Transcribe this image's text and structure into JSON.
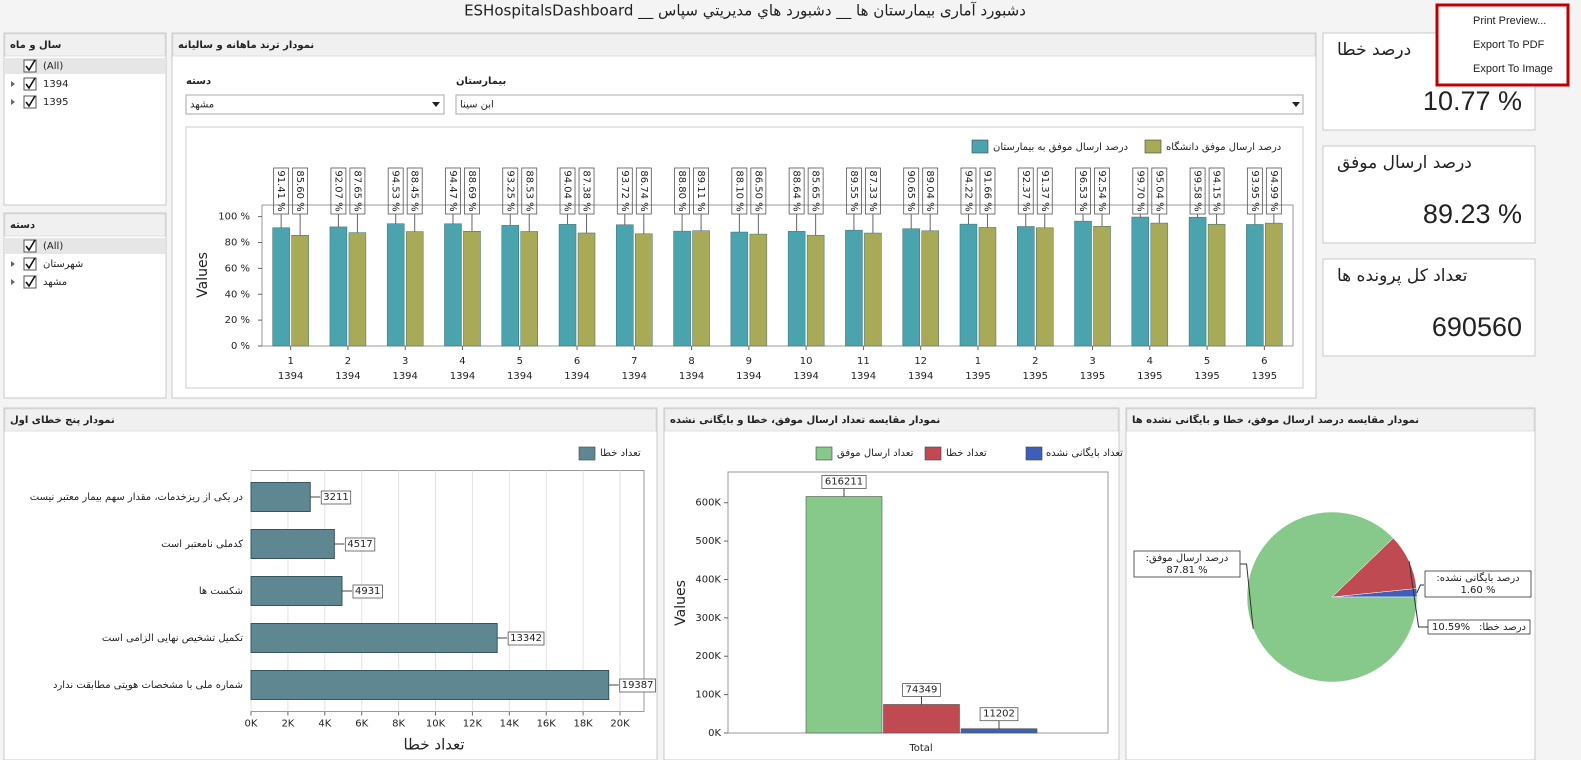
{
  "header": {
    "title": "دشبورد آماری بیمارستان ها __ دشبورد هاي مديريتي سپاس __ ESHospitalsDashboard"
  },
  "menu": {
    "items": [
      "Print Preview...",
      "Export To PDF",
      "Export To Image"
    ]
  },
  "filters": [
    {
      "title": "سال و ماه",
      "items": [
        "(All)",
        "1394",
        "1395"
      ]
    },
    {
      "title": "دسته",
      "items": [
        "(All)",
        "شهرستان",
        "مشهد"
      ]
    }
  ],
  "trend_panel": {
    "dropdowns": [
      {
        "label": "دسته",
        "value": "مشهد"
      },
      {
        "label": "بیمارستان",
        "value": "ابن سینا"
      }
    ]
  },
  "kpis": [
    {
      "title": "درصد خطا",
      "value": "10.77 %"
    },
    {
      "title": "درصد ارسال موفق",
      "value": "89.23 %"
    },
    {
      "title": "تعداد کل پرونده ها",
      "value": "690560"
    }
  ],
  "chart_data": [
    {
      "type": "bar",
      "title": "نمودار ترند ماهانه و سالیانه",
      "ylabel": "Values",
      "grid": false,
      "categories": [
        [
          "1",
          "1394"
        ],
        [
          "2",
          "1394"
        ],
        [
          "3",
          "1394"
        ],
        [
          "4",
          "1394"
        ],
        [
          "5",
          "1394"
        ],
        [
          "6",
          "1394"
        ],
        [
          "7",
          "1394"
        ],
        [
          "8",
          "1394"
        ],
        [
          "9",
          "1394"
        ],
        [
          "10",
          "1394"
        ],
        [
          "11",
          "1394"
        ],
        [
          "12",
          "1394"
        ],
        [
          "1",
          "1395"
        ],
        [
          "2",
          "1395"
        ],
        [
          "3",
          "1395"
        ],
        [
          "4",
          "1395"
        ],
        [
          "5",
          "1395"
        ],
        [
          "6",
          "1395"
        ]
      ],
      "ylim": [
        0,
        109
      ],
      "yticks": [
        {
          "value": 0,
          "label": "0 %"
        },
        {
          "value": 20,
          "label": "20 %"
        },
        {
          "value": 40,
          "label": "40 %"
        },
        {
          "value": 60,
          "label": "60 %"
        },
        {
          "value": 80,
          "label": "80 %"
        },
        {
          "value": 100,
          "label": "100 %"
        }
      ],
      "series": [
        {
          "name": "درصد ارسال موفق به بیمارستان",
          "color": "#4aa3ad",
          "values": [
            91.41,
            92.07,
            94.53,
            94.47,
            93.25,
            94.04,
            93.72,
            88.8,
            88.1,
            88.64,
            89.55,
            90.65,
            94.22,
            92.37,
            96.53,
            99.7,
            99.58,
            93.95
          ],
          "value_labels": [
            "91.41 %",
            "92.07 %",
            "94.53 %",
            "94.47 %",
            "93.25 %",
            "94.04 %",
            "93.72 %",
            "88.80 %",
            "88.10 %",
            "88.64 %",
            "89.55 %",
            "90.65 %",
            "94.22 %",
            "92.37 %",
            "96.53 %",
            "99.70 %",
            "99.58 %",
            "93.95 %"
          ]
        },
        {
          "name": "درصد ارسال موفق دانشگاه",
          "color": "#a8aa58",
          "values": [
            85.6,
            87.65,
            88.45,
            88.69,
            88.53,
            87.38,
            86.74,
            89.11,
            86.5,
            85.65,
            87.33,
            89.04,
            91.66,
            91.37,
            92.54,
            95.04,
            94.15,
            94.99
          ],
          "value_labels": [
            "85.60 %",
            "87.65 %",
            "88.45 %",
            "88.69 %",
            "88.53 %",
            "87.38 %",
            "86.74 %",
            "89.11 %",
            "86.50 %",
            "85.65 %",
            "87.33 %",
            "89.04 %",
            "91.66 %",
            "91.37 %",
            "92.54 %",
            "95.04 %",
            "94.15 %",
            "94.99 %"
          ]
        }
      ]
    },
    {
      "type": "hbar",
      "title": "نمودار پنج خطای اول",
      "xlabel": "تعداد خطا",
      "grid": true,
      "categories": [
        "در یکی از ریزخدمات، مقدار سهم بیمار معتبر نیست",
        "کدملی نامعتبر است",
        "شکست ها",
        "تکمیل تشخیص نهایی الزامی است",
        "شماره ملی با مشخصات هویتی مطابقت ندارد"
      ],
      "series": [
        {
          "name": "تعداد خطا",
          "color": "#5e8791",
          "values": [
            3211,
            4517,
            4931,
            13342,
            19387
          ]
        }
      ],
      "xlim": [
        0,
        21300
      ],
      "xticks": [
        {
          "value": 0,
          "label": "0K"
        },
        {
          "value": 2000,
          "label": "2K"
        },
        {
          "value": 4000,
          "label": "4K"
        },
        {
          "value": 6000,
          "label": "6K"
        },
        {
          "value": 8000,
          "label": "8K"
        },
        {
          "value": 10000,
          "label": "10K"
        },
        {
          "value": 12000,
          "label": "12K"
        },
        {
          "value": 14000,
          "label": "14K"
        },
        {
          "value": 16000,
          "label": "16K"
        },
        {
          "value": 18000,
          "label": "18K"
        },
        {
          "value": 20000,
          "label": "20K"
        }
      ]
    },
    {
      "type": "column",
      "title": "نمودار مقایسه تعداد ارسال موفق، خطا و بایگانی نشده",
      "ylabel": "Values",
      "categories": [
        "Total"
      ],
      "series": [
        {
          "name": "تعداد ارسال موفق",
          "color": "#86c98a",
          "values": [
            616211
          ]
        },
        {
          "name": "تعداد خطا",
          "color": "#c04a52",
          "values": [
            74349
          ]
        },
        {
          "name": "تعداد بایگانی نشده",
          "color": "#3d5fb8",
          "values": [
            11202
          ]
        }
      ],
      "ylim": [
        0,
        680000
      ],
      "yticks": [
        {
          "value": 0,
          "label": "0K"
        },
        {
          "value": 100000,
          "label": "100K"
        },
        {
          "value": 200000,
          "label": "200K"
        },
        {
          "value": 300000,
          "label": "300K"
        },
        {
          "value": 400000,
          "label": "400K"
        },
        {
          "value": 500000,
          "label": "500K"
        },
        {
          "value": 600000,
          "label": "600K"
        }
      ]
    },
    {
      "type": "pie",
      "title": "نمودار مقایسه درصد ارسال موفق، خطا و بایگانی نشده ها",
      "categories": [
        "درصد ارسال موفق:",
        "درصد خطا:",
        "درصد بایگانی نشده:"
      ],
      "values": [
        87.81,
        10.59,
        1.6
      ],
      "value_labels": [
        "87.81 %",
        "10.59%",
        "1.60 %"
      ],
      "colors": [
        "#86c98a",
        "#c04a52",
        "#3d5fb8"
      ]
    }
  ]
}
